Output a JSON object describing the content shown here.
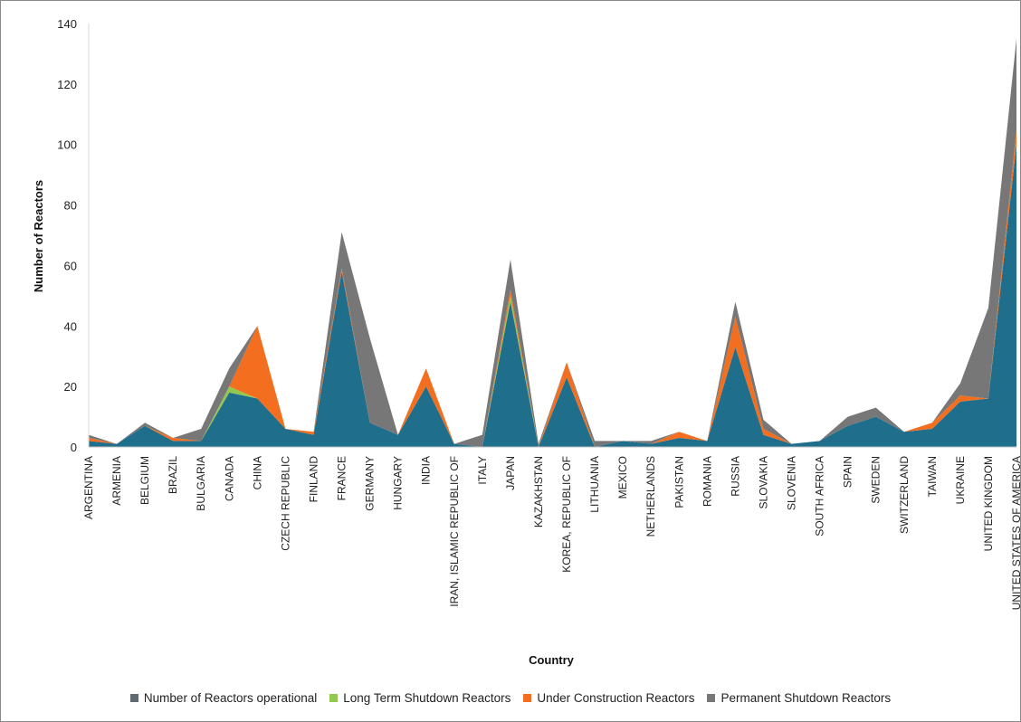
{
  "chart_data": {
    "type": "area",
    "stacked": true,
    "title": "",
    "xlabel": "Country",
    "ylabel": "Number of Reactors",
    "ylim": [
      0,
      140
    ],
    "yticks": [
      0,
      20,
      40,
      60,
      80,
      100,
      120,
      140
    ],
    "grid": false,
    "legend_position": "bottom",
    "categories": [
      "ARGENTINA",
      "ARMENIA",
      "BELGIUM",
      "BRAZIL",
      "BULGARIA",
      "CANADA",
      "CHINA",
      "CZECH REPUBLIC",
      "FINLAND",
      "FRANCE",
      "GERMANY",
      "HUNGARY",
      "INDIA",
      "IRAN, ISLAMIC REPUBLIC OF",
      "ITALY",
      "JAPAN",
      "KAZAKHSTAN",
      "KOREA, REPUBLIC OF",
      "LITHUANIA",
      "MEXICO",
      "NETHERLANDS",
      "PAKISTAN",
      "ROMANIA",
      "RUSSIA",
      "SLOVAKIA",
      "SLOVENIA",
      "SOUTH AFRICA",
      "SPAIN",
      "SWEDEN",
      "SWITZERLAND",
      "TAIWAN",
      "UKRAINE",
      "UNITED KINGDOM",
      "UNITED STATES OF AMERICA"
    ],
    "series": [
      {
        "name": "Number of Reactors operational",
        "color": "#1f6e8c",
        "values": [
          2,
          1,
          7,
          2,
          2,
          18,
          16,
          6,
          4,
          58,
          8,
          4,
          20,
          1,
          0,
          48,
          0,
          23,
          0,
          2,
          1,
          3,
          2,
          33,
          4,
          1,
          2,
          7,
          10,
          5,
          6,
          15,
          16,
          100
        ]
      },
      {
        "name": "Long Term Shutdown Reactors",
        "color": "#92c84f",
        "values": [
          0,
          0,
          0,
          0,
          0,
          2,
          0,
          0,
          0,
          0,
          0,
          0,
          0,
          0,
          0,
          2,
          0,
          0,
          0,
          0,
          0,
          0,
          0,
          0,
          0,
          0,
          0,
          0,
          0,
          0,
          0,
          0,
          0,
          0
        ]
      },
      {
        "name": "Under Construction Reactors",
        "color": "#f36f1f",
        "values": [
          1,
          0,
          0,
          1,
          0,
          0,
          24,
          0,
          1,
          1,
          0,
          0,
          6,
          0,
          0,
          2,
          0,
          5,
          0,
          0,
          0,
          2,
          0,
          10,
          2,
          0,
          0,
          0,
          0,
          0,
          2,
          2,
          0,
          5
        ]
      },
      {
        "name": "Permanent Shutdown Reactors",
        "color": "#777777",
        "values": [
          1,
          0,
          1,
          0,
          4,
          6,
          0,
          0,
          0,
          12,
          28,
          0,
          0,
          0,
          4,
          10,
          1,
          0,
          2,
          0,
          1,
          0,
          0,
          5,
          3,
          0,
          0,
          3,
          3,
          0,
          0,
          4,
          30,
          30
        ]
      }
    ]
  },
  "legend_items": [
    {
      "label": "Number of Reactors operational",
      "color": "#5f6a72"
    },
    {
      "label": "Long Term Shutdown Reactors",
      "color": "#92c84f"
    },
    {
      "label": "Under Construction Reactors",
      "color": "#f36f1f"
    },
    {
      "label": "Permanent Shutdown Reactors",
      "color": "#777777"
    }
  ]
}
